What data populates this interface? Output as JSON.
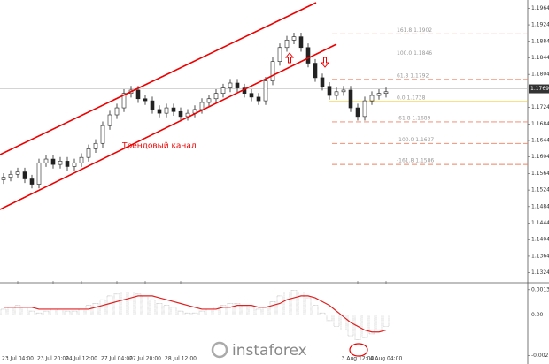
{
  "chart_data": [
    {
      "type": "candlestick",
      "annotation": "Трендовый канал",
      "watermark": "instaforex",
      "categories": [
        null,
        null,
        "23 Jul 04:00",
        null,
        null,
        null,
        null,
        "23 Jul 20:00",
        null,
        null,
        null,
        "24 Jul 12:00",
        null,
        null,
        null,
        null,
        "27 Jul 04:00",
        null,
        null,
        null,
        "27 Jul 20:00",
        null,
        null,
        null,
        null,
        "28 Jul 12:00",
        null,
        null,
        null,
        null,
        null,
        null,
        null,
        null,
        null,
        null,
        null,
        null,
        null,
        null,
        null,
        null,
        null,
        null,
        null,
        null,
        null,
        null,
        null,
        null,
        "3 Aug 12:00",
        null,
        null,
        null,
        "4 Aug 04:00"
      ],
      "open": [
        1.1549,
        1.1555,
        1.1562,
        1.1568,
        1.1551,
        1.1538,
        1.159,
        1.1599,
        1.1586,
        1.1594,
        1.1581,
        1.159,
        1.1603,
        1.1624,
        1.1637,
        1.168,
        1.1706,
        1.1723,
        1.1758,
        1.1766,
        1.1745,
        1.174,
        1.1719,
        1.171,
        1.1723,
        1.1714,
        1.1702,
        1.171,
        1.1719,
        1.1736,
        1.1745,
        1.1758,
        1.1771,
        1.1783,
        1.1771,
        1.1758,
        1.1749,
        1.174,
        1.1788,
        1.1835,
        1.1869,
        1.1887,
        1.1895,
        1.1869,
        1.1831,
        1.1796,
        1.1775,
        1.1753,
        1.1762,
        1.1766,
        1.1723,
        1.1702,
        1.174,
        1.1753,
        1.1758
      ],
      "high": [
        1.1565,
        1.1572,
        1.1578,
        1.1578,
        1.1561,
        1.16,
        1.1609,
        1.1609,
        1.1604,
        1.1604,
        1.16,
        1.1613,
        1.1634,
        1.1647,
        1.169,
        1.1716,
        1.1733,
        1.1768,
        1.1776,
        1.1776,
        1.1755,
        1.175,
        1.1729,
        1.1733,
        1.1733,
        1.1724,
        1.172,
        1.1729,
        1.1746,
        1.1755,
        1.1768,
        1.1781,
        1.1793,
        1.1793,
        1.1781,
        1.1768,
        1.1759,
        1.1798,
        1.1845,
        1.1879,
        1.1897,
        1.1905,
        1.1905,
        1.1879,
        1.1841,
        1.1806,
        1.1785,
        1.1772,
        1.1776,
        1.1776,
        1.1733,
        1.175,
        1.1763,
        1.1768,
        1.1772
      ],
      "low": [
        1.1539,
        1.1545,
        1.1552,
        1.1541,
        1.1528,
        1.1528,
        1.158,
        1.1576,
        1.1576,
        1.1571,
        1.1571,
        1.158,
        1.1593,
        1.1614,
        1.1627,
        1.167,
        1.1696,
        1.1713,
        1.1748,
        1.1735,
        1.173,
        1.1709,
        1.17,
        1.17,
        1.1704,
        1.1692,
        1.1692,
        1.17,
        1.1709,
        1.1726,
        1.1735,
        1.1748,
        1.1761,
        1.1761,
        1.1748,
        1.1739,
        1.173,
        1.173,
        1.1778,
        1.1825,
        1.1859,
        1.1877,
        1.1859,
        1.1821,
        1.1786,
        1.1765,
        1.1743,
        1.1743,
        1.1752,
        1.1713,
        1.1692,
        1.1692,
        1.173,
        1.1743,
        1.1748
      ],
      "close": [
        1.1555,
        1.1562,
        1.1568,
        1.1551,
        1.1538,
        1.159,
        1.1599,
        1.1586,
        1.1594,
        1.1581,
        1.159,
        1.1603,
        1.1624,
        1.1637,
        1.168,
        1.1706,
        1.1723,
        1.1758,
        1.1766,
        1.1745,
        1.174,
        1.1719,
        1.171,
        1.1723,
        1.1714,
        1.1702,
        1.171,
        1.1719,
        1.1736,
        1.1745,
        1.1758,
        1.1771,
        1.1783,
        1.1771,
        1.1758,
        1.1749,
        1.174,
        1.1788,
        1.1835,
        1.1869,
        1.1887,
        1.1895,
        1.1869,
        1.1831,
        1.1796,
        1.1775,
        1.1753,
        1.1762,
        1.1766,
        1.1723,
        1.1702,
        1.174,
        1.1753,
        1.1758,
        1.1762
      ],
      "last_price": 1.1769,
      "levels": [
        {
          "value": 1.1902,
          "label": "161.8 1.1902"
        },
        {
          "value": 1.1846,
          "label": "100.0 1.1846"
        },
        {
          "value": 1.1792,
          "label": "61.8 1.1792"
        },
        {
          "value": 1.1738,
          "label": "0.0 1.1738"
        },
        {
          "value": 1.1689,
          "label": "-61.8 1.1689"
        },
        {
          "value": 1.1637,
          "label": "-100.0 1.1637"
        },
        {
          "value": 1.1586,
          "label": "-161.8 1.1586"
        }
      ],
      "level_color": "#f08060",
      "base_level_color": "#f5c400",
      "ylim": [
        1.1304,
        1.1984
      ],
      "yticks": [
        1.1964,
        1.1924,
        1.1884,
        1.1844,
        1.1804,
        1.1724,
        1.1684,
        1.1644,
        1.1604,
        1.1564,
        1.1524,
        1.1484,
        1.1444,
        1.1404,
        1.1364,
        1.1324
      ]
    },
    {
      "type": "bar",
      "values": [
        0.0003,
        0.0004,
        0.0005,
        0.0004,
        0.0002,
        0.0001,
        0.0002,
        0.0003,
        0.0003,
        0.0002,
        0.0002,
        0.0003,
        0.0005,
        0.0006,
        0.0008,
        0.001,
        0.0011,
        0.0012,
        0.0012,
        0.0011,
        0.001,
        0.0008,
        0.0006,
        0.0005,
        0.0004,
        0.0002,
        0.0001,
        0.0001,
        0.0002,
        0.0003,
        0.0004,
        0.0005,
        0.0006,
        0.0006,
        0.0005,
        0.0004,
        0.0003,
        0.0004,
        0.0007,
        0.001,
        0.0012,
        0.0013,
        0.0012,
        0.0009,
        0.0005,
        0.0001,
        -0.0003,
        -0.0006,
        -0.0008,
        -0.0011,
        -0.0013,
        -0.0012,
        -0.001,
        -0.0008,
        -0.0006
      ],
      "color": "#b0b0b0",
      "line": {
        "color": "#e02020",
        "values": [
          0.0004,
          0.0004,
          0.0004,
          0.0004,
          0.0004,
          0.0003,
          0.0003,
          0.0003,
          0.0003,
          0.0003,
          0.0003,
          0.0003,
          0.0003,
          0.0004,
          0.0005,
          0.0006,
          0.0007,
          0.0008,
          0.0009,
          0.001,
          0.001,
          0.001,
          0.0009,
          0.0008,
          0.0007,
          0.0006,
          0.0005,
          0.0004,
          0.0003,
          0.0003,
          0.0003,
          0.0004,
          0.0004,
          0.0005,
          0.0005,
          0.0005,
          0.0004,
          0.0004,
          0.0005,
          0.0006,
          0.0008,
          0.0009,
          0.001,
          0.001,
          0.0009,
          0.0007,
          0.0005,
          0.0002,
          -0.0001,
          -0.0004,
          -0.0006,
          -0.0008,
          -0.0009,
          -0.0009,
          -0.0008
        ]
      },
      "ylim": [
        -0.0024,
        0.0016
      ],
      "yticks": [
        0.00133,
        {
          "value": 0,
          "label": "0.00"
        },
        -0.00215
      ]
    }
  ]
}
